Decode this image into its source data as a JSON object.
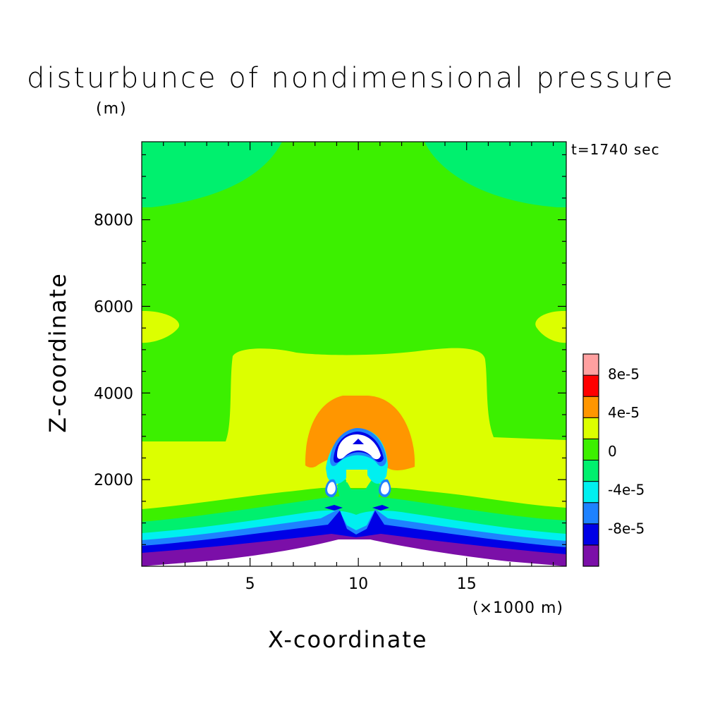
{
  "chart_data": {
    "type": "heatmap",
    "title": "disturbunce of nondimensional pressure",
    "xlabel": "X-coordinate",
    "ylabel": "Z-coordinate",
    "x_unit": "(×1000 m)",
    "y_unit": "(m)",
    "time_label": "t=1740 sec",
    "xlim": [
      0,
      19.6
    ],
    "ylim": [
      0,
      9800
    ],
    "xticks": [
      5,
      10,
      15
    ],
    "xtick_labels": [
      "5",
      "10",
      "15"
    ],
    "yticks": [
      2000,
      4000,
      6000,
      8000
    ],
    "ytick_labels": [
      "2000",
      "4000",
      "6000",
      "8000"
    ],
    "colorbar": {
      "levels": [
        -0.00012,
        -8e-05,
        -6e-05,
        -4e-05,
        -2e-05,
        0,
        2e-05,
        4e-05,
        6e-05,
        8e-05,
        0.0001
      ],
      "colors": [
        "#7b0fa8",
        "#0000e6",
        "#1e82ff",
        "#00f0f0",
        "#00f06e",
        "#3cf000",
        "#dcff00",
        "#ff9600",
        "#ff0000",
        "#ffa0a0"
      ],
      "labels": [
        "-8e-5",
        "-4e-5",
        "0",
        "4e-5",
        "8e-5"
      ],
      "label_values": [
        -8e-05,
        -4e-05,
        0,
        4e-05,
        8e-05
      ]
    },
    "regions": [
      {
        "name": "upper-background",
        "value_range": [
          0,
          2e-05
        ],
        "color": "#3cf000"
      },
      {
        "name": "top-left-lobe",
        "value_range": [
          -2e-05,
          0
        ],
        "color": "#00f06e"
      },
      {
        "name": "top-right-lobe",
        "value_range": [
          -2e-05,
          0
        ],
        "color": "#00f06e"
      },
      {
        "name": "mid-layer",
        "value_range": [
          2e-05,
          4e-05
        ],
        "color": "#dcff00"
      },
      {
        "name": "central-warm-dome",
        "value_range": [
          4e-05,
          6e-05
        ],
        "color": "#ff9600"
      },
      {
        "name": "surface-layers",
        "value_range": [
          -0.00012,
          -2e-05
        ],
        "color": "#7b0fa8"
      },
      {
        "name": "terrain",
        "value_range": null,
        "color": "#ffffff"
      }
    ]
  }
}
